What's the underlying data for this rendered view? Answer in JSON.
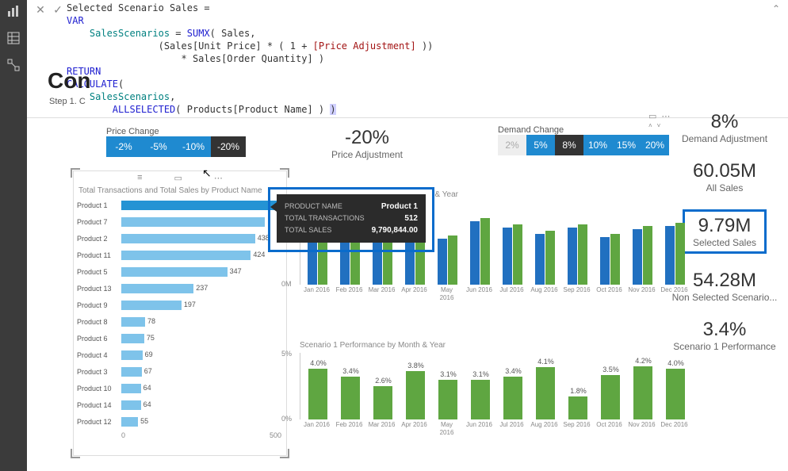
{
  "formula": {
    "line1_measure": "Selected Scenario Sales",
    "var_kw": "VAR",
    "var_name": "SalesScenarios",
    "sumx": "SUMX",
    "sales_tbl": "Sales",
    "expr_a": "(Sales[Unit Price] * ( 1 + ",
    "price_adj_ref": "[Price Adjustment]",
    "expr_b": " ))",
    "expr_c": "* Sales[Order Quantity] )",
    "return_kw": "RETURN",
    "calc_fn": "CALCULATE",
    "var_ref": "SalesScenarios",
    "allsel_fn": "ALLSELECTED",
    "allsel_arg": "Products[Product Name]"
  },
  "page": {
    "title": "Con",
    "step": "Step 1. C"
  },
  "price_slicer": {
    "label": "Price Change",
    "buttons": [
      "-2%",
      "-5%",
      "-10%",
      "-20%"
    ],
    "selected_index": 3,
    "blue": "#1f8ad0",
    "dark": "#333333"
  },
  "demand_slicer": {
    "label": "Demand Change",
    "buttons": [
      "2%",
      "5%",
      "8%",
      "10%",
      "15%",
      "20%"
    ],
    "disabled_index": 0,
    "selected_index": 2
  },
  "headline_price": {
    "value": "-20%",
    "label": "Price Adjustment"
  },
  "kpis": [
    {
      "value": "8%",
      "label": "Demand Adjustment",
      "hl": false
    },
    {
      "value": "60.05M",
      "label": "All Sales",
      "hl": false
    },
    {
      "value": "9.79M",
      "label": "Selected Sales",
      "hl": true
    },
    {
      "value": "54.28M",
      "label": "Non Selected Scenario...",
      "hl": false
    },
    {
      "value": "3.4%",
      "label": "Scenario 1 Performance",
      "hl": false
    }
  ],
  "hbar": {
    "title": "Total Transactions and Total Sales by Product Name",
    "max": 540,
    "axis": [
      "0",
      "500"
    ],
    "rows": [
      {
        "name": "Product 1",
        "v": 512,
        "sel": true,
        "show": ""
      },
      {
        "name": "Product 7",
        "v": 470,
        "sel": false,
        "show": ""
      },
      {
        "name": "Product 2",
        "v": 438,
        "sel": false,
        "show": "438"
      },
      {
        "name": "Product 11",
        "v": 424,
        "sel": false,
        "show": "424"
      },
      {
        "name": "Product 5",
        "v": 347,
        "sel": false,
        "show": "347"
      },
      {
        "name": "Product 13",
        "v": 237,
        "sel": false,
        "show": "237"
      },
      {
        "name": "Product 9",
        "v": 197,
        "sel": false,
        "show": "197"
      },
      {
        "name": "Product 8",
        "v": 78,
        "sel": false,
        "show": "78"
      },
      {
        "name": "Product 6",
        "v": 75,
        "sel": false,
        "show": "75"
      },
      {
        "name": "Product 4",
        "v": 69,
        "sel": false,
        "show": "69"
      },
      {
        "name": "Product 3",
        "v": 67,
        "sel": false,
        "show": "67"
      },
      {
        "name": "Product 10",
        "v": 64,
        "sel": false,
        "show": "64"
      },
      {
        "name": "Product 14",
        "v": 64,
        "sel": false,
        "show": "64"
      },
      {
        "name": "Product 12",
        "v": 55,
        "sel": false,
        "show": "55"
      }
    ]
  },
  "tooltip": {
    "rows": [
      {
        "k": "PRODUCT NAME",
        "v": "Product 1"
      },
      {
        "k": "TOTAL TRANSACTIONS",
        "v": "512"
      },
      {
        "k": "TOTAL SALES",
        "v": "9,790,844.00"
      }
    ]
  },
  "colchart": {
    "title_suffix": "& Year",
    "yticks": [
      {
        "v": "0M",
        "p": 0
      }
    ],
    "colors": {
      "a": "#2170c0",
      "b": "#5fa641"
    },
    "months": [
      "Jan 2016",
      "Feb 2016",
      "Mar 2016",
      "Apr 2016",
      "May 2016",
      "Jun 2016",
      "Jul 2016",
      "Aug 2016",
      "Sep 2016",
      "Oct 2016",
      "Nov 2016",
      "Dec 2016"
    ],
    "a": [
      62,
      56,
      55,
      72,
      58,
      80,
      72,
      64,
      72,
      60,
      70,
      74
    ],
    "b": [
      66,
      60,
      58,
      76,
      62,
      84,
      76,
      68,
      76,
      64,
      74,
      78
    ]
  },
  "perf": {
    "title": "Scenario 1 Performance by Month & Year",
    "yticks": [
      {
        "v": "5%",
        "p": 100
      },
      {
        "v": "0%",
        "p": 0
      }
    ],
    "color": "#5fa641",
    "months": [
      "Jan 2016",
      "Feb 2016",
      "Mar 2016",
      "Apr 2016",
      "May 2016",
      "Jun 2016",
      "Jul 2016",
      "Aug 2016",
      "Sep 2016",
      "Oct 2016",
      "Nov 2016",
      "Dec 2016"
    ],
    "values": [
      4.0,
      3.4,
      2.6,
      3.8,
      3.1,
      3.1,
      3.4,
      4.1,
      1.8,
      3.5,
      4.2,
      4.0
    ],
    "labels": [
      "4.0%",
      "3.4%",
      "2.6%",
      "3.8%",
      "3.1%",
      "3.1%",
      "3.4%",
      "4.1%",
      "1.8%",
      "3.5%",
      "4.2%",
      "4.0%"
    ]
  }
}
